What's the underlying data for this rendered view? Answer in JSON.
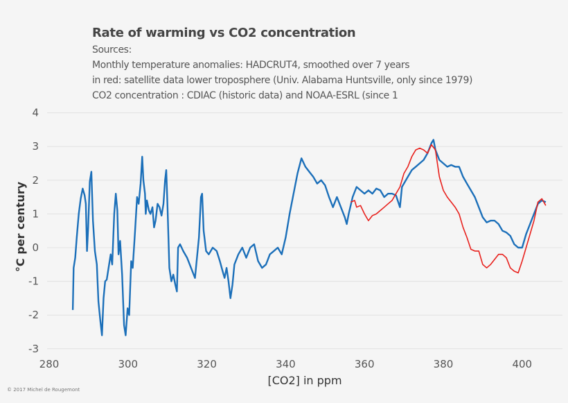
{
  "chart_data": {
    "type": "line",
    "title": "Rate of warming vs CO2 concentration",
    "subtitle_lines": [
      "Sources:",
      "Monthly temperature anomalies: HADCRUT4, smoothed over 7 years",
      "in red: satellite data  lower troposphere (Univ. Alabama Huntsville, only since 1979)",
      "CO2 concentration : CDIAC (historic data) and NOAA-ESRL (since 1"
    ],
    "xlabel": "[CO2] in ppm",
    "ylabel": "°C per century",
    "xlim": [
      280,
      410
    ],
    "ylim": [
      -3,
      4
    ],
    "xticks": [
      "280",
      "300",
      "320",
      "340",
      "360",
      "380",
      "400"
    ],
    "yticks": [
      "4",
      "3",
      "2",
      "1",
      "0",
      "-1",
      "-2",
      "-3"
    ],
    "grid": "horizontal",
    "colors": {
      "hadcrut": "#1b6fb9",
      "satellite": "#e8201c"
    },
    "series": [
      {
        "key": "hadcrut",
        "points": [
          [
            286.0,
            -1.85
          ],
          [
            286.2,
            -0.6
          ],
          [
            286.6,
            -0.3
          ],
          [
            287.0,
            0.3
          ],
          [
            287.5,
            1.0
          ],
          [
            288.0,
            1.45
          ],
          [
            288.5,
            1.75
          ],
          [
            289.0,
            1.55
          ],
          [
            289.3,
            1.3
          ],
          [
            289.6,
            -0.1
          ],
          [
            289.9,
            0.6
          ],
          [
            290.3,
            1.95
          ],
          [
            290.7,
            2.25
          ],
          [
            291.1,
            0.8
          ],
          [
            291.6,
            -0.1
          ],
          [
            292.1,
            -0.5
          ],
          [
            292.5,
            -1.6
          ],
          [
            293.0,
            -2.2
          ],
          [
            293.4,
            -2.6
          ],
          [
            293.8,
            -1.5
          ],
          [
            294.2,
            -1.0
          ],
          [
            294.6,
            -0.95
          ],
          [
            295.2,
            -0.5
          ],
          [
            295.6,
            -0.2
          ],
          [
            296.0,
            -0.5
          ],
          [
            296.5,
            1.0
          ],
          [
            296.9,
            1.6
          ],
          [
            297.3,
            1.1
          ],
          [
            297.6,
            -0.2
          ],
          [
            298.0,
            0.2
          ],
          [
            298.5,
            -0.8
          ],
          [
            299.0,
            -2.3
          ],
          [
            299.4,
            -2.6
          ],
          [
            299.9,
            -1.8
          ],
          [
            300.3,
            -2.0
          ],
          [
            300.8,
            -0.4
          ],
          [
            301.2,
            -0.6
          ],
          [
            301.8,
            0.5
          ],
          [
            302.3,
            1.5
          ],
          [
            302.7,
            1.3
          ],
          [
            303.2,
            1.9
          ],
          [
            303.6,
            2.7
          ],
          [
            303.9,
            2.0
          ],
          [
            304.3,
            1.6
          ],
          [
            304.5,
            1.0
          ],
          [
            304.8,
            1.4
          ],
          [
            305.3,
            1.1
          ],
          [
            305.7,
            1.0
          ],
          [
            306.2,
            1.2
          ],
          [
            306.6,
            0.6
          ],
          [
            307.0,
            0.8
          ],
          [
            307.5,
            1.3
          ],
          [
            308.0,
            1.2
          ],
          [
            308.5,
            0.95
          ],
          [
            309.0,
            1.3
          ],
          [
            309.4,
            2.0
          ],
          [
            309.7,
            2.3
          ],
          [
            310.0,
            1.3
          ],
          [
            310.5,
            -0.6
          ],
          [
            311.0,
            -1.0
          ],
          [
            311.5,
            -0.8
          ],
          [
            312.0,
            -1.1
          ],
          [
            312.4,
            -1.3
          ],
          [
            312.7,
            0.0
          ],
          [
            313.2,
            0.1
          ],
          [
            314.0,
            -0.1
          ],
          [
            315.0,
            -0.3
          ],
          [
            316.0,
            -0.6
          ],
          [
            317.0,
            -0.9
          ],
          [
            318.0,
            0.3
          ],
          [
            318.5,
            1.5
          ],
          [
            318.8,
            1.6
          ],
          [
            319.2,
            0.5
          ],
          [
            319.8,
            -0.1
          ],
          [
            320.5,
            -0.2
          ],
          [
            321.5,
            0.0
          ],
          [
            322.5,
            -0.1
          ],
          [
            323.3,
            -0.4
          ],
          [
            324.0,
            -0.7
          ],
          [
            324.5,
            -0.9
          ],
          [
            325.0,
            -0.6
          ],
          [
            325.5,
            -1.0
          ],
          [
            326.0,
            -1.5
          ],
          [
            326.5,
            -1.1
          ],
          [
            327.0,
            -0.5
          ],
          [
            328.0,
            -0.2
          ],
          [
            329.0,
            0.0
          ],
          [
            330.0,
            -0.3
          ],
          [
            331.0,
            0.0
          ],
          [
            332.0,
            0.1
          ],
          [
            333.0,
            -0.4
          ],
          [
            334.0,
            -0.6
          ],
          [
            335.0,
            -0.5
          ],
          [
            336.0,
            -0.2
          ],
          [
            337.0,
            -0.1
          ],
          [
            338.0,
            0.0
          ],
          [
            339.0,
            -0.2
          ],
          [
            340.0,
            0.3
          ],
          [
            341.0,
            1.0
          ],
          [
            342.0,
            1.6
          ],
          [
            343.0,
            2.2
          ],
          [
            344.0,
            2.65
          ],
          [
            345.0,
            2.4
          ],
          [
            346.0,
            2.25
          ],
          [
            347.0,
            2.1
          ],
          [
            348.0,
            1.9
          ],
          [
            349.0,
            2.0
          ],
          [
            350.0,
            1.85
          ],
          [
            351.0,
            1.5
          ],
          [
            352.0,
            1.2
          ],
          [
            353.0,
            1.5
          ],
          [
            354.0,
            1.2
          ],
          [
            355.0,
            0.9
          ],
          [
            355.5,
            0.7
          ],
          [
            356.0,
            1.0
          ],
          [
            357.0,
            1.5
          ],
          [
            358.0,
            1.8
          ],
          [
            359.0,
            1.7
          ],
          [
            360.0,
            1.6
          ],
          [
            361.0,
            1.7
          ],
          [
            362.0,
            1.6
          ],
          [
            363.0,
            1.75
          ],
          [
            364.0,
            1.7
          ],
          [
            365.0,
            1.5
          ],
          [
            366.0,
            1.6
          ],
          [
            367.0,
            1.6
          ],
          [
            368.0,
            1.55
          ],
          [
            369.0,
            1.2
          ],
          [
            369.5,
            1.8
          ],
          [
            371.0,
            2.1
          ],
          [
            372.0,
            2.3
          ],
          [
            373.0,
            2.4
          ],
          [
            374.0,
            2.5
          ],
          [
            375.0,
            2.6
          ],
          [
            376.0,
            2.8
          ],
          [
            377.0,
            3.1
          ],
          [
            377.5,
            3.2
          ],
          [
            378.0,
            2.9
          ],
          [
            379.0,
            2.6
          ],
          [
            380.0,
            2.5
          ],
          [
            381.0,
            2.4
          ],
          [
            382.0,
            2.45
          ],
          [
            383.0,
            2.4
          ],
          [
            384.0,
            2.4
          ],
          [
            385.0,
            2.1
          ],
          [
            386.0,
            1.9
          ],
          [
            387.0,
            1.7
          ],
          [
            388.0,
            1.5
          ],
          [
            389.0,
            1.2
          ],
          [
            390.0,
            0.9
          ],
          [
            391.0,
            0.75
          ],
          [
            392.0,
            0.8
          ],
          [
            393.0,
            0.8
          ],
          [
            394.0,
            0.7
          ],
          [
            395.0,
            0.5
          ],
          [
            396.0,
            0.45
          ],
          [
            397.0,
            0.35
          ],
          [
            398.0,
            0.1
          ],
          [
            399.0,
            0.0
          ],
          [
            400.0,
            0.0
          ],
          [
            401.0,
            0.4
          ],
          [
            402.0,
            0.7
          ],
          [
            403.0,
            1.0
          ],
          [
            404.0,
            1.3
          ],
          [
            405.0,
            1.4
          ],
          [
            406.0,
            1.35
          ]
        ]
      },
      {
        "key": "satellite",
        "points": [
          [
            356.5,
            1.35
          ],
          [
            357.5,
            1.4
          ],
          [
            358.0,
            1.2
          ],
          [
            359.0,
            1.25
          ],
          [
            360.0,
            1.0
          ],
          [
            361.0,
            0.8
          ],
          [
            362.0,
            0.95
          ],
          [
            363.0,
            1.0
          ],
          [
            364.0,
            1.1
          ],
          [
            365.0,
            1.2
          ],
          [
            366.0,
            1.3
          ],
          [
            367.0,
            1.4
          ],
          [
            368.0,
            1.6
          ],
          [
            369.0,
            1.8
          ],
          [
            370.0,
            2.2
          ],
          [
            371.0,
            2.4
          ],
          [
            372.0,
            2.7
          ],
          [
            373.0,
            2.9
          ],
          [
            374.0,
            2.95
          ],
          [
            375.0,
            2.9
          ],
          [
            376.0,
            2.8
          ],
          [
            377.0,
            3.05
          ],
          [
            378.0,
            2.9
          ],
          [
            379.0,
            2.1
          ],
          [
            380.0,
            1.7
          ],
          [
            381.0,
            1.5
          ],
          [
            382.0,
            1.35
          ],
          [
            383.0,
            1.2
          ],
          [
            384.0,
            1.0
          ],
          [
            385.0,
            0.6
          ],
          [
            386.0,
            0.3
          ],
          [
            387.0,
            -0.05
          ],
          [
            388.0,
            -0.1
          ],
          [
            389.0,
            -0.1
          ],
          [
            390.0,
            -0.5
          ],
          [
            391.0,
            -0.6
          ],
          [
            392.0,
            -0.5
          ],
          [
            393.0,
            -0.35
          ],
          [
            394.0,
            -0.2
          ],
          [
            395.0,
            -0.2
          ],
          [
            396.0,
            -0.3
          ],
          [
            397.0,
            -0.6
          ],
          [
            398.0,
            -0.7
          ],
          [
            399.0,
            -0.75
          ],
          [
            400.0,
            -0.4
          ],
          [
            401.0,
            0.0
          ],
          [
            402.0,
            0.4
          ],
          [
            403.0,
            0.8
          ],
          [
            404.0,
            1.35
          ],
          [
            405.0,
            1.45
          ],
          [
            406.0,
            1.25
          ]
        ]
      }
    ]
  },
  "copyright": "© 2017 Michel de Rougemont"
}
